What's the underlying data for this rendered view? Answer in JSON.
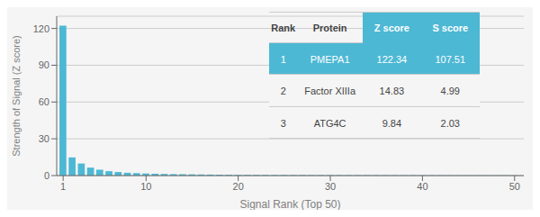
{
  "chart_data": {
    "type": "bar",
    "xlabel": "Signal Rank (Top 50)",
    "ylabel": "Strength of Signal (Z score)",
    "x": [
      1,
      2,
      3,
      4,
      5,
      6,
      7,
      8,
      9,
      10,
      11,
      12,
      13,
      14,
      15,
      16,
      17,
      18,
      19,
      20,
      21,
      22,
      23,
      24,
      25,
      26,
      27,
      28,
      29,
      30,
      31,
      32,
      33,
      34,
      35,
      36,
      37,
      38,
      39,
      40,
      41,
      42,
      43,
      44,
      45,
      46,
      47,
      48,
      49,
      50
    ],
    "values": [
      122.34,
      14.83,
      9.84,
      6.5,
      4.8,
      3.6,
      2.9,
      2.3,
      2.0,
      1.7,
      1.5,
      1.35,
      1.2,
      1.1,
      1.0,
      0.9,
      0.82,
      0.75,
      0.68,
      0.62,
      0.57,
      0.53,
      0.49,
      0.46,
      0.43,
      0.4,
      0.38,
      0.36,
      0.34,
      0.32,
      0.3,
      0.29,
      0.28,
      0.27,
      0.26,
      0.25,
      0.24,
      0.23,
      0.22,
      0.21,
      0.2,
      0.19,
      0.18,
      0.17,
      0.16,
      0.15,
      0.14,
      0.13,
      0.12,
      0.11
    ],
    "color": "#4db8d4",
    "xlim": [
      0.3,
      51
    ],
    "xticks": [
      1,
      10,
      20,
      30,
      40,
      50
    ],
    "ylim": [
      0,
      130
    ],
    "yticks": [
      0,
      30,
      60,
      90,
      120
    ],
    "grid": true,
    "table": {
      "headers": [
        "Rank",
        "Protein",
        "Z score",
        "S score"
      ],
      "rows": [
        [
          "1",
          "PMEPA1",
          "122.34",
          "107.51"
        ],
        [
          "2",
          "Factor XIIIa",
          "14.83",
          "4.99"
        ],
        [
          "3",
          "ATG4C",
          "9.84",
          "2.03"
        ]
      ]
    }
  }
}
